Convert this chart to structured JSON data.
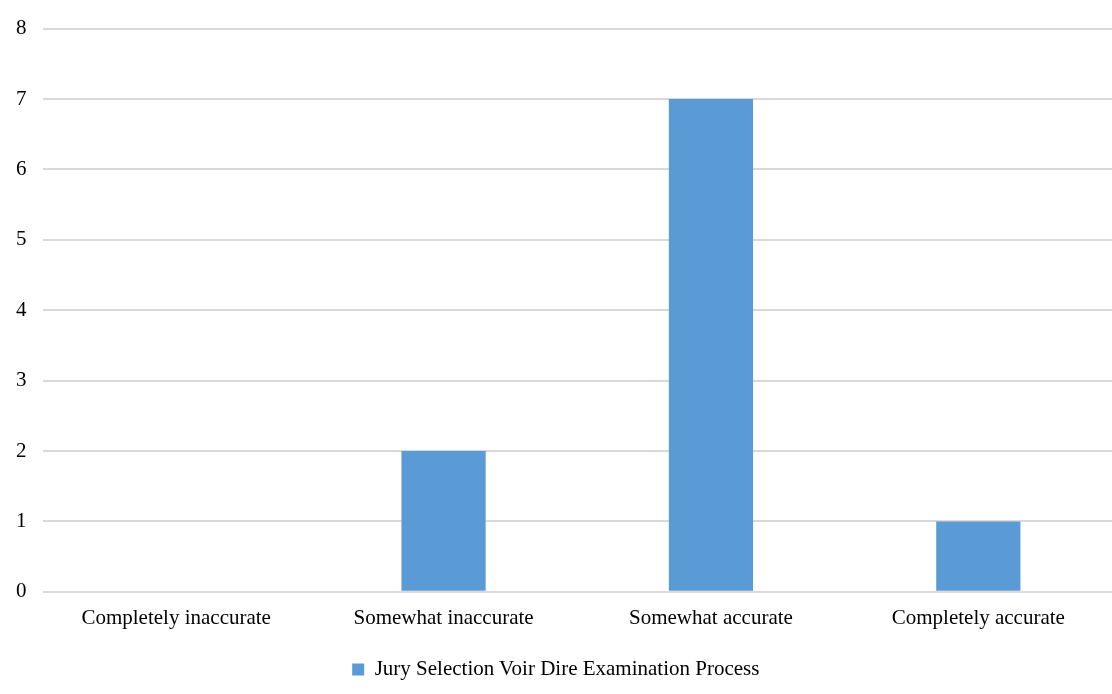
{
  "chart_data": {
    "type": "bar",
    "categories": [
      "Completely inaccurate",
      "Somewhat inaccurate",
      "Somewhat accurate",
      "Completely accurate"
    ],
    "series": [
      {
        "name": "Jury Selection Voir Dire Examination Process",
        "color": "#5b9bd5",
        "values": [
          0,
          2,
          7,
          1
        ]
      }
    ],
    "ylim": [
      0,
      8
    ],
    "yticks": [
      0,
      1,
      2,
      3,
      4,
      5,
      6,
      7,
      8
    ],
    "grid": "y",
    "legend": "bottom"
  }
}
